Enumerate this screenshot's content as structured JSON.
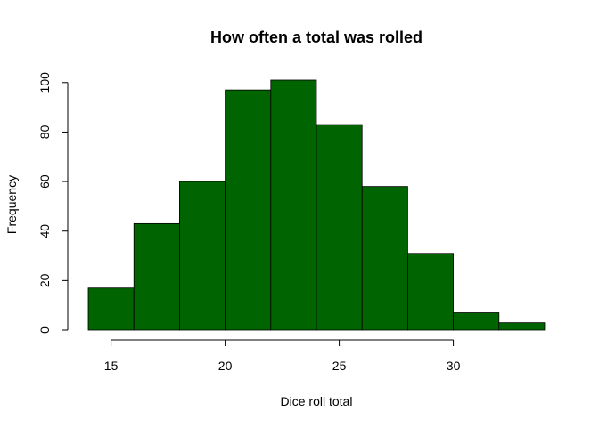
{
  "chart_data": {
    "type": "bar",
    "subtype": "histogram",
    "title": "How often a total was rolled",
    "xlabel": "Dice roll total",
    "ylabel": "Frequency",
    "bar_color": "#006400",
    "bins": [
      {
        "start": 14,
        "end": 16,
        "count": 17
      },
      {
        "start": 16,
        "end": 18,
        "count": 43
      },
      {
        "start": 18,
        "end": 20,
        "count": 60
      },
      {
        "start": 20,
        "end": 22,
        "count": 97
      },
      {
        "start": 22,
        "end": 24,
        "count": 101
      },
      {
        "start": 24,
        "end": 26,
        "count": 83
      },
      {
        "start": 26,
        "end": 28,
        "count": 58
      },
      {
        "start": 28,
        "end": 30,
        "count": 31
      },
      {
        "start": 30,
        "end": 32,
        "count": 7
      },
      {
        "start": 32,
        "end": 34,
        "count": 3
      }
    ],
    "xlim": [
      14,
      34
    ],
    "ylim": [
      0,
      101
    ],
    "xticks": [
      "15",
      "20",
      "25",
      "30"
    ],
    "yticks": [
      "0",
      "20",
      "40",
      "60",
      "80",
      "100"
    ],
    "grid": false,
    "legend": "none"
  }
}
